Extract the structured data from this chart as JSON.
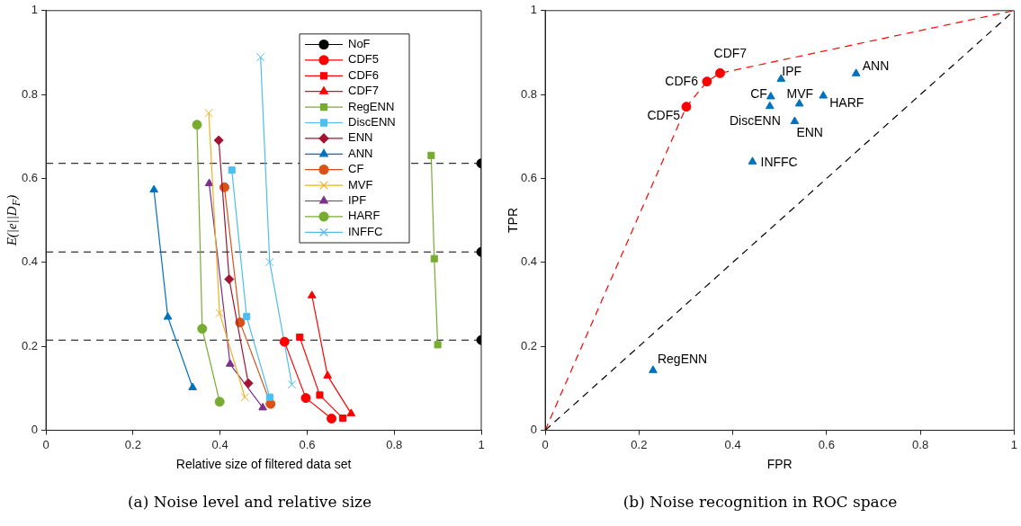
{
  "chart_data": [
    {
      "type": "line",
      "title": "(a) Noise level and relative size",
      "xlabel": "Relative size of filtered data set",
      "ylabel": "E(|e||D$_{F}$)",
      "xlim": [
        0,
        1
      ],
      "ylim": [
        0,
        1
      ],
      "xticks": [
        0,
        0.2,
        0.4,
        0.6,
        0.8,
        1
      ],
      "yticks": [
        0,
        0.2,
        0.4,
        0.6,
        0.8,
        1
      ],
      "grid": false,
      "legend": "top right",
      "ref_lines": [
        {
          "axis": "y",
          "value": 0.636,
          "color": "#000000",
          "line_style": "dashed"
        },
        {
          "axis": "y",
          "value": 0.425,
          "color": "#000000",
          "line_style": "dashed"
        },
        {
          "axis": "y",
          "value": 0.215,
          "color": "#000000",
          "line_style": "dashed"
        }
      ],
      "series": [
        {
          "name": "NoF",
          "color": "#000000",
          "marker": "circle",
          "x": [
            1,
            1,
            1
          ],
          "values": [
            0.636,
            0.425,
            0.215
          ]
        },
        {
          "name": "CDF5",
          "color": "#ff0000",
          "marker": "circle",
          "x": [
            0.548,
            0.597,
            0.656
          ],
          "values": [
            0.211,
            0.077,
            0.028
          ]
        },
        {
          "name": "CDF6",
          "color": "#ff0000",
          "marker": "square",
          "x": [
            0.583,
            0.629,
            0.682
          ],
          "values": [
            0.222,
            0.084,
            0.029
          ]
        },
        {
          "name": "CDF7",
          "color": "#ff0000",
          "marker": "triangle",
          "x": [
            0.611,
            0.647,
            0.701
          ],
          "values": [
            0.321,
            0.13,
            0.04
          ]
        },
        {
          "name": "RegENN",
          "color": "#77ac30",
          "marker": "square",
          "x": [
            0.885,
            0.892,
            0.9
          ],
          "values": [
            0.655,
            0.409,
            0.204
          ]
        },
        {
          "name": "DiscENN",
          "color": "#4dbeee",
          "marker": "square",
          "x": [
            0.427,
            0.461,
            0.514
          ],
          "values": [
            0.62,
            0.271,
            0.079
          ]
        },
        {
          "name": "ENN",
          "color": "#a2142f",
          "marker": "diamond",
          "x": [
            0.397,
            0.421,
            0.465
          ],
          "values": [
            0.691,
            0.36,
            0.112
          ]
        },
        {
          "name": "ANN",
          "color": "#0072bd",
          "marker": "triangle",
          "x": [
            0.248,
            0.28,
            0.337
          ],
          "values": [
            0.573,
            0.27,
            0.102
          ]
        },
        {
          "name": "CF",
          "color": "#d95319",
          "marker": "circle",
          "x": [
            0.41,
            0.446,
            0.516
          ],
          "values": [
            0.579,
            0.257,
            0.063
          ]
        },
        {
          "name": "MVF",
          "color": "#edb120",
          "marker": "cross",
          "x": [
            0.374,
            0.399,
            0.457
          ],
          "values": [
            0.756,
            0.279,
            0.079
          ]
        },
        {
          "name": "IPF",
          "color": "#7e2f8e",
          "marker": "triangle",
          "x": [
            0.375,
            0.423,
            0.498
          ],
          "values": [
            0.588,
            0.158,
            0.054
          ]
        },
        {
          "name": "HARF",
          "color": "#77ac30",
          "marker": "circle",
          "x": [
            0.347,
            0.359,
            0.399
          ],
          "values": [
            0.728,
            0.242,
            0.068
          ]
        },
        {
          "name": "INFFC",
          "color": "#4dbeee",
          "marker": "cross",
          "x": [
            0.493,
            0.514,
            0.565
          ],
          "values": [
            0.889,
            0.401,
            0.109
          ]
        }
      ]
    },
    {
      "type": "scatter",
      "title": "(b) Noise recognition in ROC space",
      "xlabel": "FPR",
      "ylabel": "TPR",
      "xlim": [
        0,
        1
      ],
      "ylim": [
        0,
        1
      ],
      "xticks": [
        0,
        0.2,
        0.4,
        0.6,
        0.8,
        1
      ],
      "yticks": [
        0,
        0.2,
        0.4,
        0.6,
        0.8,
        1
      ],
      "grid": false,
      "legend": false,
      "series": [
        {
          "type": "line",
          "color": "#000000",
          "marker": "none",
          "line_style": "dashed",
          "x": [
            0,
            1
          ],
          "values": [
            0,
            1
          ]
        },
        {
          "type": "line",
          "color": "#ff0000",
          "marker": "none",
          "line_style": "dashed",
          "x": [
            0,
            0.301,
            0.345,
            0.373,
            1
          ],
          "values": [
            0,
            0.771,
            0.831,
            0.851,
            1
          ]
        },
        {
          "color": "#ff0000",
          "marker": "circle",
          "x": [
            0.301,
            0.345,
            0.373
          ],
          "values": [
            0.771,
            0.831,
            0.851
          ]
        },
        {
          "color": "#0072bd",
          "marker": "triangle",
          "x": [
            0.503,
            0.663,
            0.481,
            0.542,
            0.593,
            0.479,
            0.532,
            0.442,
            0.23
          ],
          "values": [
            0.837,
            0.85,
            0.795,
            0.778,
            0.797,
            0.772,
            0.736,
            0.64,
            0.143
          ]
        }
      ],
      "annotations": [
        {
          "text": "CDF7",
          "x": 0.373,
          "y": 0.851
        },
        {
          "text": "CDF6",
          "x": 0.345,
          "y": 0.831
        },
        {
          "text": "CDF5",
          "x": 0.301,
          "y": 0.771
        },
        {
          "text": "IPF",
          "x": 0.503,
          "y": 0.837
        },
        {
          "text": "ANN",
          "x": 0.663,
          "y": 0.85
        },
        {
          "text": "CF",
          "x": 0.481,
          "y": 0.795
        },
        {
          "text": "MVF",
          "x": 0.542,
          "y": 0.778
        },
        {
          "text": "HARF",
          "x": 0.593,
          "y": 0.797
        },
        {
          "text": "DiscENN",
          "x": 0.479,
          "y": 0.772
        },
        {
          "text": "ENN",
          "x": 0.532,
          "y": 0.736
        },
        {
          "text": "INFFC",
          "x": 0.442,
          "y": 0.64
        },
        {
          "text": "RegENN",
          "x": 0.23,
          "y": 0.143
        }
      ]
    }
  ]
}
